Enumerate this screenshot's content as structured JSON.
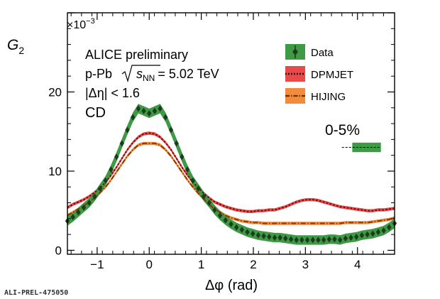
{
  "chart_data": {
    "type": "line",
    "title": "",
    "xlabel": "Δφ (rad)",
    "ylabel": "G",
    "ylabel_sub": "2",
    "y_multiplier": "×10",
    "y_multiplier_exp": "−3",
    "xlim": [
      -1.5708,
      4.7124
    ],
    "ylim": [
      -0.5,
      30
    ],
    "x_ticks": [
      -1,
      0,
      1,
      2,
      3,
      4
    ],
    "x_tick_labels": [
      "−1",
      "0",
      "1",
      "2",
      "3",
      "4"
    ],
    "y_ticks": [
      0,
      10,
      20
    ],
    "y_tick_labels": [
      "0",
      "10",
      "20"
    ],
    "annotations": {
      "line1": "ALICE preliminary",
      "line2_prefix": "p-Pb",
      "line2_sqrt_s": "s",
      "line2_sqrt_sub": "NN",
      "line2_value": "= 5.02 TeV",
      "line3": "|Δη| < 1.6",
      "line4": "CD",
      "centrality": "0-5%"
    },
    "legend_position": "top-right",
    "series": [
      {
        "name": "Data",
        "color": "#1d3b1d",
        "band_color": "#3e9a44",
        "x": [
          -1.571,
          -1.466,
          -1.361,
          -1.257,
          -1.152,
          -1.047,
          -0.942,
          -0.838,
          -0.733,
          -0.628,
          -0.524,
          -0.419,
          -0.314,
          -0.209,
          -0.105,
          0.0,
          0.105,
          0.209,
          0.314,
          0.419,
          0.524,
          0.628,
          0.733,
          0.838,
          0.942,
          1.047,
          1.152,
          1.257,
          1.361,
          1.466,
          1.571,
          1.676,
          1.78,
          1.885,
          1.99,
          2.094,
          2.199,
          2.304,
          2.409,
          2.513,
          2.618,
          2.723,
          2.827,
          2.932,
          3.037,
          3.142,
          3.246,
          3.351,
          3.456,
          3.56,
          3.665,
          3.77,
          3.875,
          3.979,
          4.084,
          4.189,
          4.294,
          4.398,
          4.503,
          4.608,
          4.712
        ],
        "y": [
          3.7,
          4.2,
          4.8,
          5.4,
          6.0,
          6.8,
          7.8,
          8.8,
          10.2,
          11.8,
          13.5,
          15.2,
          16.8,
          17.9,
          17.6,
          17.3,
          17.6,
          17.9,
          16.8,
          15.2,
          13.5,
          11.8,
          10.2,
          8.8,
          7.8,
          6.8,
          6.0,
          5.1,
          4.4,
          3.8,
          3.3,
          2.9,
          2.6,
          2.3,
          2.1,
          1.9,
          1.8,
          1.7,
          1.6,
          1.6,
          1.5,
          1.4,
          1.3,
          1.3,
          1.3,
          1.3,
          1.3,
          1.3,
          1.4,
          1.4,
          1.3,
          1.5,
          1.6,
          1.7,
          1.9,
          2.0,
          2.1,
          2.3,
          2.5,
          2.9,
          3.4
        ],
        "band": 0.6
      },
      {
        "name": "DPMJET",
        "color": "#6b0e0e",
        "band_color": "#e84a4a",
        "x": [
          -1.571,
          -1.466,
          -1.361,
          -1.257,
          -1.152,
          -1.047,
          -0.942,
          -0.838,
          -0.733,
          -0.628,
          -0.524,
          -0.419,
          -0.314,
          -0.209,
          -0.105,
          0.0,
          0.105,
          0.209,
          0.314,
          0.419,
          0.524,
          0.628,
          0.733,
          0.838,
          0.942,
          1.047,
          1.152,
          1.257,
          1.361,
          1.466,
          1.571,
          1.676,
          1.78,
          1.885,
          1.99,
          2.094,
          2.199,
          2.304,
          2.409,
          2.513,
          2.618,
          2.723,
          2.827,
          2.932,
          3.037,
          3.142,
          3.246,
          3.351,
          3.456,
          3.56,
          3.665,
          3.77,
          3.875,
          3.979,
          4.084,
          4.189,
          4.294,
          4.398,
          4.503,
          4.608,
          4.712
        ],
        "y": [
          5.4,
          5.8,
          6.1,
          6.4,
          6.8,
          7.3,
          7.9,
          8.6,
          9.5,
          10.5,
          11.6,
          12.7,
          13.6,
          14.3,
          14.7,
          14.8,
          14.7,
          14.3,
          13.6,
          12.7,
          11.6,
          10.5,
          9.5,
          8.6,
          7.9,
          7.2,
          6.6,
          6.1,
          5.8,
          5.5,
          5.3,
          5.1,
          5.0,
          4.9,
          4.9,
          5.0,
          5.0,
          5.1,
          5.1,
          5.3,
          5.5,
          5.8,
          6.1,
          6.3,
          6.4,
          6.4,
          6.3,
          6.1,
          5.9,
          5.7,
          5.5,
          5.4,
          5.3,
          5.2,
          5.1,
          5.0,
          5.0,
          5.1,
          5.1,
          5.2,
          5.3
        ],
        "band": 0.2
      },
      {
        "name": "HIJING",
        "color": "#8a3a00",
        "band_color": "#f08c3c",
        "x": [
          -1.571,
          -1.466,
          -1.361,
          -1.257,
          -1.152,
          -1.047,
          -0.942,
          -0.838,
          -0.733,
          -0.628,
          -0.524,
          -0.419,
          -0.314,
          -0.209,
          -0.105,
          0.0,
          0.105,
          0.209,
          0.314,
          0.419,
          0.524,
          0.628,
          0.733,
          0.838,
          0.942,
          1.047,
          1.152,
          1.257,
          1.361,
          1.466,
          1.571,
          1.676,
          1.78,
          1.885,
          1.99,
          2.094,
          2.199,
          2.304,
          2.409,
          2.513,
          2.618,
          2.723,
          2.827,
          2.932,
          3.037,
          3.142,
          3.246,
          3.351,
          3.456,
          3.56,
          3.665,
          3.77,
          3.875,
          3.979,
          4.084,
          4.189,
          4.294,
          4.398,
          4.503,
          4.608,
          4.712
        ],
        "y": [
          4.4,
          4.8,
          5.2,
          5.6,
          6.1,
          6.6,
          7.3,
          8.0,
          8.9,
          9.9,
          10.9,
          11.9,
          12.7,
          13.3,
          13.5,
          13.5,
          13.5,
          13.3,
          12.7,
          11.9,
          10.9,
          9.9,
          8.9,
          8.0,
          7.2,
          6.5,
          5.8,
          5.2,
          4.8,
          4.4,
          4.1,
          3.9,
          3.7,
          3.6,
          3.5,
          3.5,
          3.4,
          3.4,
          3.4,
          3.4,
          3.4,
          3.4,
          3.4,
          3.4,
          3.4,
          3.4,
          3.4,
          3.4,
          3.4,
          3.4,
          3.4,
          3.5,
          3.5,
          3.5,
          3.5,
          3.5,
          3.6,
          3.7,
          3.8,
          3.9,
          4.1
        ],
        "band": 0.2
      }
    ],
    "centrality_band": {
      "x": [
        3.9,
        4.45
      ],
      "y": 13.0,
      "half_height": 0.6,
      "dashes_from": 3.7
    }
  },
  "footer_id": "ALI-PREL-475050"
}
